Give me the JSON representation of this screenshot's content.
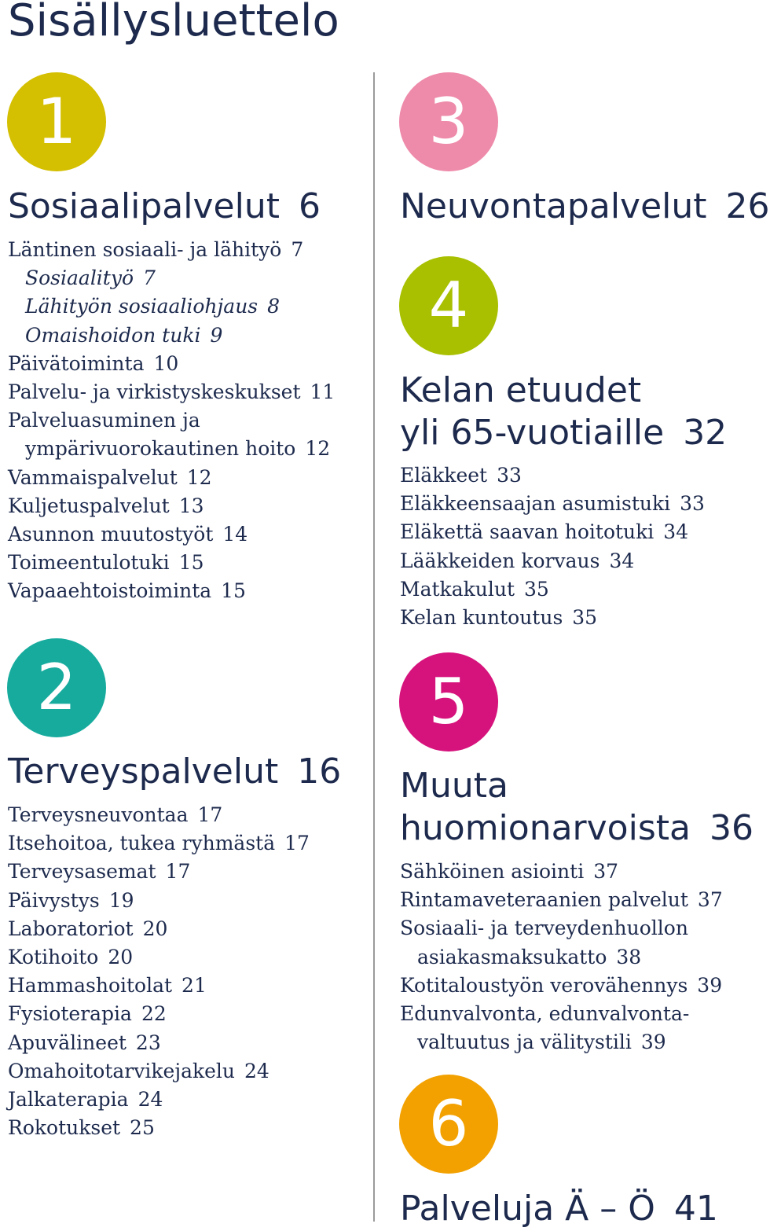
{
  "page_title": "Sisällysluettelo",
  "sections": [
    {
      "number": "1",
      "color": "#d4bf00",
      "title": "Sosiaalipalvelut",
      "page": "6",
      "entries": [
        {
          "label": "Läntinen sosiaali- ja lähityö",
          "page": "7"
        },
        {
          "label": "Sosiaalityö",
          "page": "7"
        },
        {
          "label": "Lähityön sosiaaliohjaus",
          "page": "8"
        },
        {
          "label": "Omaishoidon tuki",
          "page": "9"
        },
        {
          "label": "Päivätoiminta",
          "page": "10"
        },
        {
          "label": "Palvelu- ja virkistyskeskukset",
          "page": "11"
        },
        {
          "label": "Palveluasuminen ja",
          "page": ""
        },
        {
          "label": "ympärivuorokautinen hoito",
          "page": "12"
        },
        {
          "label": "Vammaispalvelut",
          "page": "12"
        },
        {
          "label": "Kuljetuspalvelut",
          "page": "13"
        },
        {
          "label": "Asunnon muutostyöt",
          "page": "14"
        },
        {
          "label": "Toimeentulotuki",
          "page": "15"
        },
        {
          "label": "Vapaaehtoistoiminta",
          "page": "15"
        }
      ]
    },
    {
      "number": "2",
      "color": "#17ab9e",
      "title": "Terveyspalvelut",
      "page": "16",
      "entries": [
        {
          "label": "Terveysneuvontaa",
          "page": "17"
        },
        {
          "label": "Itsehoitoa, tukea ryhmästä",
          "page": "17"
        },
        {
          "label": "Terveysasemat",
          "page": "17"
        },
        {
          "label": "Päivystys",
          "page": "19"
        },
        {
          "label": "Laboratoriot",
          "page": "20"
        },
        {
          "label": "Kotihoito",
          "page": "20"
        },
        {
          "label": "Hammashoitolat",
          "page": "21"
        },
        {
          "label": "Fysioterapia",
          "page": "22"
        },
        {
          "label": "Apuvälineet",
          "page": "23"
        },
        {
          "label": "Omahoitotarvikejakelu",
          "page": "24"
        },
        {
          "label": "Jalkaterapia",
          "page": "24"
        },
        {
          "label": "Rokotukset",
          "page": "25"
        }
      ]
    },
    {
      "number": "3",
      "color": "#ee8aaa",
      "title": "Neuvontapalvelut",
      "page": "26",
      "entries": []
    },
    {
      "number": "4",
      "color": "#a8c000",
      "title_line1": "Kelan etuudet",
      "title_line2": "yli 65-vuotiaille",
      "page": "32",
      "entries": [
        {
          "label": "Eläkkeet",
          "page": "33"
        },
        {
          "label": "Eläkkeensaajan asumistuki",
          "page": "33"
        },
        {
          "label": "Eläkettä saavan hoitotuki",
          "page": "34"
        },
        {
          "label": "Lääkkeiden korvaus",
          "page": "34"
        },
        {
          "label": "Matkakulut",
          "page": "35"
        },
        {
          "label": "Kelan kuntoutus",
          "page": "35"
        }
      ]
    },
    {
      "number": "5",
      "color": "#d6127c",
      "title_line1": "Muuta",
      "title_line2": "huomionarvoista",
      "page": "36",
      "entries": [
        {
          "label": "Sähköinen asiointi",
          "page": "37"
        },
        {
          "label": "Rintamaveteraanien palvelut",
          "page": "37"
        },
        {
          "label": "Sosiaali- ja terveydenhuollon",
          "page": ""
        },
        {
          "label": "asiakasmaksukatto",
          "page": "38"
        },
        {
          "label": "Kotitaloustyön verovähennys",
          "page": "39"
        },
        {
          "label": "Edunvalvonta, edunvalvonta-",
          "page": ""
        },
        {
          "label": "valtuutus ja välitystili",
          "page": "39"
        }
      ]
    },
    {
      "number": "6",
      "color": "#f2a100",
      "title": "Palveluja Ä – Ö",
      "page": "41",
      "entries": []
    }
  ]
}
